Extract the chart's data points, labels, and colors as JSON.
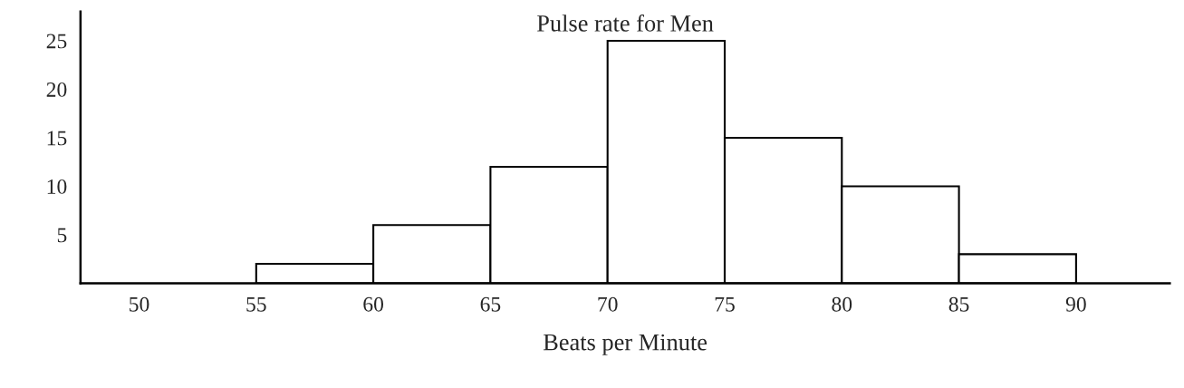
{
  "chart_data": {
    "type": "histogram",
    "title": "Pulse rate for Men",
    "xlabel": "Beats per Minute",
    "bins": [
      55,
      60,
      65,
      70,
      75,
      80,
      85,
      90
    ],
    "values": [
      2,
      6,
      12,
      25,
      15,
      10,
      3
    ],
    "color": "#ffffff",
    "xlim": [
      47.5,
      94
    ],
    "xticks": [
      50,
      55,
      60,
      65,
      70,
      75,
      80,
      85,
      90
    ],
    "ylim": [
      0,
      28
    ],
    "yticks": [
      5,
      10,
      15,
      20,
      25
    ],
    "grid": false
  }
}
